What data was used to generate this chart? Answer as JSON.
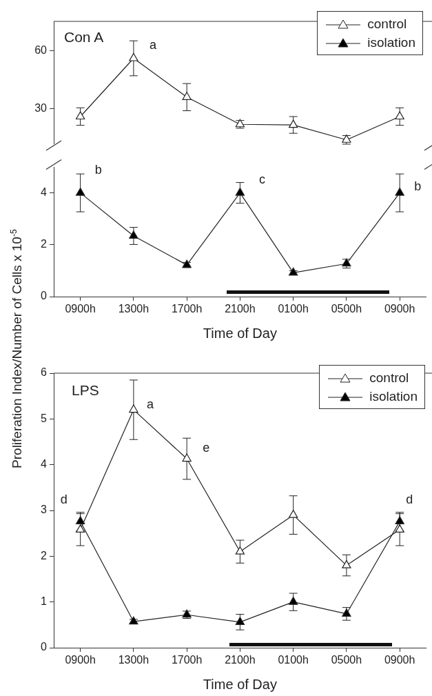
{
  "chart_data": [
    {
      "type": "line",
      "title": "Con A",
      "categories": [
        null,
        null,
        null,
        null,
        null,
        null,
        null
      ],
      "tick_labels": "y",
      "series": [
        {
          "name": "control",
          "color": "#ffffff",
          "values": [
            26,
            56,
            36,
            22,
            21.7,
            14,
            26
          ],
          "errors": [
            4.5,
            9,
            7,
            2,
            4.3,
            2.2,
            4.5
          ]
        },
        {
          "name": "isolation",
          "color": "#000000",
          "values": [
            null,
            null,
            null,
            null,
            null,
            null,
            null
          ]
        }
      ],
      "ylim": [
        12,
        75
      ],
      "yticks": [
        30,
        60
      ],
      "marker": "triangle",
      "legend": "top right",
      "annotations": [
        "a"
      ]
    },
    {
      "type": "line",
      "xlabel": "Time of Day",
      "categories": [
        "0900h",
        "1300h",
        "1700h",
        "2100h",
        "0100h",
        "0500h",
        "0900h"
      ],
      "series": [
        {
          "color": "#000000",
          "values": [
            4,
            2.34,
            1.22,
            4,
            0.92,
            1.27,
            4
          ],
          "errors": [
            0.73,
            0.33,
            0.1,
            0.4,
            0.08,
            0.17,
            0.73
          ]
        }
      ],
      "ylim": [
        0,
        5
      ],
      "yticks": [
        0,
        2,
        4
      ],
      "marker": "triangle",
      "annotations": [
        "b",
        "c",
        "b"
      ]
    },
    {
      "type": "line",
      "title": "LPS",
      "xlabel": "Time of Day",
      "ylabel": "Proliferation Index/Number of Cells x 10$^{-5}$",
      "categories": [
        "0900h",
        "1300h",
        "1700h",
        "2100h",
        "0100h",
        "0500h",
        "0900h"
      ],
      "series": [
        {
          "name": "control",
          "color": "#ffffff",
          "values": [
            2.58,
            5.2,
            4.13,
            2.1,
            2.9,
            1.8,
            2.58
          ],
          "errors": [
            0.35,
            0.65,
            0.45,
            0.25,
            0.42,
            0.23,
            0.35
          ]
        },
        {
          "name": "isolation",
          "color": "#000000",
          "values": [
            2.76,
            0.57,
            0.72,
            0.56,
            1.0,
            0.74,
            2.76
          ],
          "errors": [
            0.2,
            0.05,
            0.08,
            0.17,
            0.19,
            0.14,
            0.2
          ]
        }
      ],
      "ylim": [
        0,
        6
      ],
      "yticks": [
        0,
        1,
        2,
        3,
        4,
        5,
        6
      ],
      "marker": "triangle",
      "legend": "top right",
      "annotations": [
        "a",
        "e",
        "d",
        "d"
      ]
    }
  ]
}
